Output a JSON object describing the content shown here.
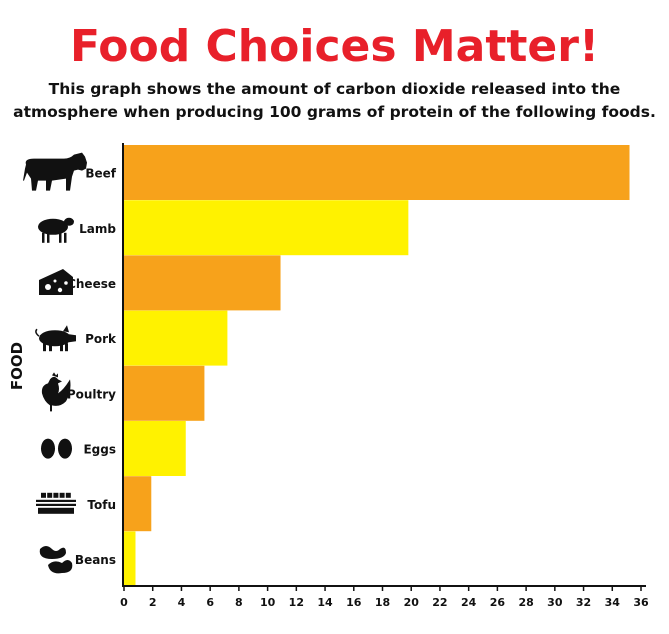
{
  "header": {
    "title": "Food Choices Matter!",
    "subtitle_lines": [
      "This graph shows the amount of carbon dioxide released into the",
      "atmosphere when producing 100 grams of protein of the following foods."
    ]
  },
  "colors": {
    "title": "#e8202a",
    "bar_orange": "#f7a21b",
    "bar_yellow": "#fff200",
    "icon": "#111111"
  },
  "chart_data": {
    "type": "bar",
    "orientation": "horizontal",
    "title": "Food Choices Matter!",
    "subtitle": "This graph shows the amount of carbon dioxide released into the atmosphere when producing 100 grams of protein of the following foods.",
    "ylabel": "FOOD",
    "xlabel": "",
    "categories": [
      "Beef",
      "Lamb",
      "Cheese",
      "Pork",
      "Poultry",
      "Eggs",
      "Tofu",
      "Beans"
    ],
    "values": [
      35.2,
      19.8,
      10.9,
      7.2,
      5.6,
      4.3,
      1.9,
      0.8
    ],
    "bar_colors": [
      "#f7a21b",
      "#fff200",
      "#f7a21b",
      "#fff200",
      "#f7a21b",
      "#fff200",
      "#f7a21b",
      "#fff200"
    ],
    "icons": [
      "cow-icon",
      "sheep-icon",
      "cheese-icon",
      "pig-icon",
      "chicken-icon",
      "eggs-icon",
      "tofu-icon",
      "beans-icon"
    ],
    "xlim": [
      0,
      36
    ],
    "xticks": [
      "0",
      "2",
      "4",
      "6",
      "8",
      "10",
      "12",
      "14",
      "16",
      "18",
      "20",
      "22",
      "24",
      "26",
      "28",
      "30",
      "32",
      "34",
      "36"
    ],
    "grid": false,
    "legend": "none"
  }
}
